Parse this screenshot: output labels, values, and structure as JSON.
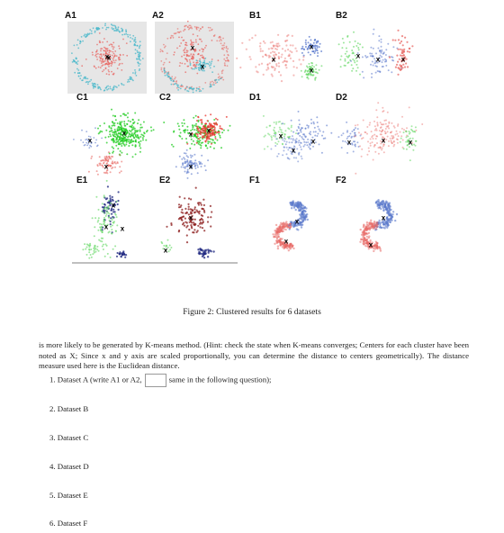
{
  "figure": {
    "panels": [
      "A1",
      "A2",
      "B1",
      "B2",
      "C1",
      "C2",
      "D1",
      "D2",
      "E1",
      "E2",
      "F1",
      "F2"
    ],
    "center_marker": "x",
    "caption": "Figure 2: Clustered results for 6 datasets",
    "colors": {
      "red": "#e86a66",
      "cyan": "#45b7c9",
      "blue": "#5b79cc",
      "green": "#5cd65c",
      "brightgreen": "#22cc22",
      "brightred": "#e8352e",
      "darkred": "#8b1a1a",
      "navy": "#1a237e",
      "panelbg": "#e6e6e6"
    }
  },
  "text": {
    "para_line1": "is more likely to be generated by K-means method. (Hint: check the state when K-means converges; Centers",
    "para_line2": "for each cluster have been noted as X; Since x and y axis are scaled proportionally, you can determine the",
    "para_line3": "distance to centers geometrically). The distance measure used here is the Euclidean distance."
  },
  "questions": {
    "q1_prefix": "1. Dataset A (write A1 or A2,",
    "q1_suffix": "same in the following question);",
    "q2": "2. Dataset B",
    "q3": "3. Dataset C",
    "q4": "4. Dataset D",
    "q5": "5. Dataset E",
    "q6": "6. Dataset F"
  }
}
